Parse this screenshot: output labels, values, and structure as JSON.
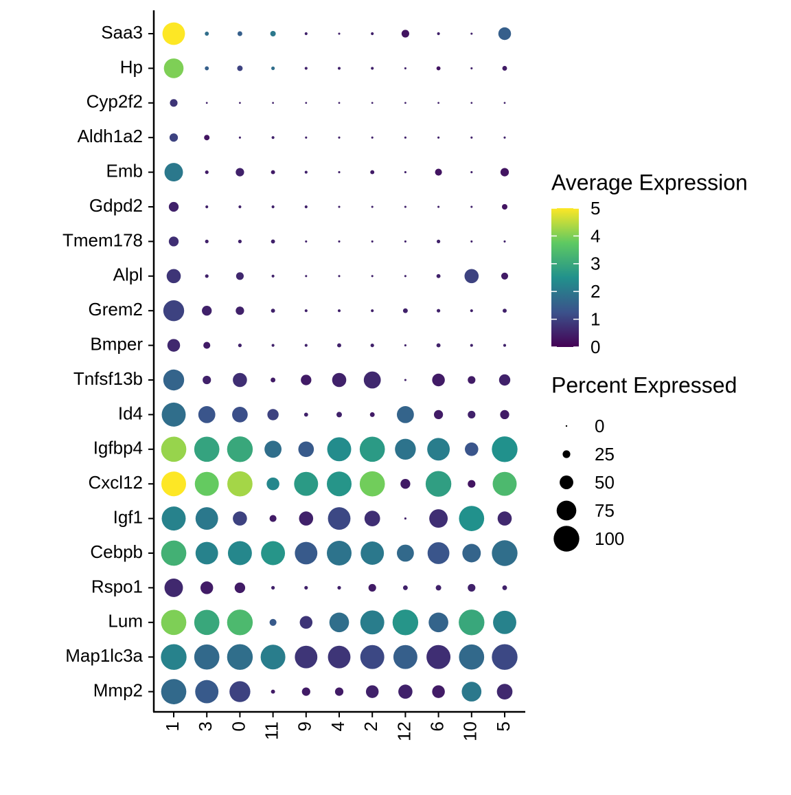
{
  "chart_data": {
    "type": "dot",
    "categories": [
      "1",
      "3",
      "0",
      "11",
      "9",
      "4",
      "2",
      "12",
      "6",
      "10",
      "5"
    ],
    "color_legend_title": "Average Expression",
    "size_legend_title": "Percent Expressed",
    "colorscale": [
      "#440154",
      "#3b528b",
      "#21918c",
      "#5ec962",
      "#fde725"
    ],
    "color_lim": [
      0,
      5
    ],
    "color_ticks": [
      0,
      1,
      2,
      3,
      4,
      5
    ],
    "size_lim": [
      0,
      100
    ],
    "size_ticks": [
      0,
      25,
      50,
      75,
      100
    ],
    "series": [
      {
        "name": "Saa3",
        "expression": [
          5.0,
          1.8,
          1.5,
          2.0,
          0.5,
          0.5,
          0.5,
          0.3,
          0.5,
          0.5,
          1.5
        ],
        "percent": [
          87,
          10,
          13,
          16,
          5,
          2,
          5,
          25,
          5,
          2,
          46
        ]
      },
      {
        "name": "Hp",
        "expression": [
          4.0,
          1.5,
          1.0,
          1.8,
          0.5,
          0.5,
          0.5,
          0.5,
          0.3,
          0.5,
          0.4
        ],
        "percent": [
          75,
          10,
          16,
          8,
          5,
          5,
          5,
          2,
          10,
          2,
          13
        ]
      },
      {
        "name": "Cyp2f2",
        "expression": [
          0.8,
          0.5,
          0.5,
          0.5,
          0.5,
          0.5,
          0.5,
          0.5,
          0.5,
          0.5,
          0.5
        ],
        "percent": [
          25,
          1,
          1,
          1,
          1,
          1,
          1,
          1,
          1,
          1,
          1
        ]
      },
      {
        "name": "Aldh1a2",
        "expression": [
          1.0,
          0.3,
          0.5,
          0.5,
          0.5,
          0.5,
          0.5,
          0.5,
          0.5,
          0.5,
          0.5
        ],
        "percent": [
          28,
          16,
          2,
          5,
          2,
          2,
          2,
          2,
          2,
          2,
          2
        ]
      },
      {
        "name": "Emb",
        "expression": [
          2.0,
          0.4,
          0.5,
          0.4,
          0.5,
          0.5,
          0.4,
          0.5,
          0.3,
          0.5,
          0.3
        ],
        "percent": [
          70,
          8,
          28,
          10,
          5,
          2,
          10,
          2,
          22,
          2,
          28
        ]
      },
      {
        "name": "Gdpd2",
        "expression": [
          0.5,
          0.5,
          0.5,
          0.5,
          0.5,
          0.5,
          0.5,
          0.5,
          0.5,
          0.5,
          0.3
        ],
        "percent": [
          34,
          5,
          5,
          5,
          5,
          2,
          2,
          2,
          2,
          2,
          16
        ]
      },
      {
        "name": "Tmem178",
        "expression": [
          0.7,
          0.5,
          0.5,
          0.5,
          0.5,
          0.5,
          0.5,
          0.5,
          0.5,
          0.5,
          0.5
        ],
        "percent": [
          34,
          8,
          8,
          10,
          2,
          2,
          2,
          2,
          8,
          2,
          2
        ]
      },
      {
        "name": "Alpl",
        "expression": [
          0.8,
          0.5,
          0.6,
          0.5,
          0.5,
          0.5,
          0.5,
          0.5,
          0.5,
          1.0,
          0.4
        ],
        "percent": [
          52,
          8,
          25,
          5,
          2,
          2,
          2,
          2,
          10,
          52,
          22
        ]
      },
      {
        "name": "Grem2",
        "expression": [
          1.0,
          0.5,
          0.5,
          0.5,
          0.5,
          0.5,
          0.5,
          0.5,
          0.5,
          0.5,
          0.5
        ],
        "percent": [
          80,
          34,
          28,
          10,
          5,
          5,
          5,
          13,
          8,
          5,
          10
        ]
      },
      {
        "name": "Bmper",
        "expression": [
          0.6,
          0.4,
          0.5,
          0.5,
          0.5,
          0.5,
          0.5,
          0.5,
          0.5,
          0.5,
          0.5
        ],
        "percent": [
          46,
          22,
          8,
          5,
          5,
          10,
          8,
          2,
          10,
          5,
          5
        ]
      },
      {
        "name": "Tnfsf13b",
        "expression": [
          1.6,
          0.5,
          0.7,
          0.4,
          0.4,
          0.5,
          0.6,
          0.5,
          0.4,
          0.4,
          0.5
        ],
        "percent": [
          80,
          28,
          52,
          13,
          37,
          52,
          64,
          2,
          46,
          25,
          40
        ]
      },
      {
        "name": "Id4",
        "expression": [
          1.8,
          1.3,
          1.2,
          1.0,
          0.5,
          0.5,
          0.4,
          1.6,
          0.4,
          0.5,
          0.4
        ],
        "percent": [
          93,
          64,
          58,
          40,
          10,
          16,
          13,
          64,
          31,
          25,
          31
        ]
      },
      {
        "name": "Igfbp4",
        "expression": [
          4.2,
          2.9,
          3.0,
          1.8,
          1.4,
          2.4,
          2.7,
          1.9,
          2.1,
          1.3,
          2.5
        ],
        "percent": [
          98,
          98,
          100,
          64,
          58,
          93,
          98,
          80,
          87,
          49,
          100
        ]
      },
      {
        "name": "Cxcl12",
        "expression": [
          5.0,
          3.8,
          4.3,
          2.3,
          2.7,
          2.6,
          3.9,
          0.4,
          2.8,
          0.3,
          3.4
        ],
        "percent": [
          96,
          93,
          98,
          46,
          93,
          96,
          98,
          34,
          100,
          25,
          93
        ]
      },
      {
        "name": "Igf1",
        "expression": [
          2.2,
          2.0,
          1.0,
          0.4,
          0.5,
          1.1,
          0.7,
          0.5,
          0.7,
          2.5,
          0.6
        ],
        "percent": [
          93,
          87,
          52,
          22,
          52,
          87,
          58,
          2,
          70,
          98,
          52
        ]
      },
      {
        "name": "Cebpb",
        "expression": [
          3.2,
          2.2,
          2.3,
          2.6,
          1.4,
          1.9,
          2.0,
          1.7,
          1.3,
          1.6,
          1.8
        ],
        "percent": [
          98,
          87,
          93,
          93,
          87,
          96,
          90,
          64,
          84,
          70,
          100
        ]
      },
      {
        "name": "Rspo1",
        "expression": [
          0.6,
          0.4,
          0.4,
          0.5,
          0.5,
          0.5,
          0.4,
          0.5,
          0.5,
          0.5,
          0.5
        ],
        "percent": [
          70,
          46,
          37,
          8,
          8,
          8,
          25,
          13,
          16,
          25,
          13
        ]
      },
      {
        "name": "Lum",
        "expression": [
          4.0,
          3.0,
          3.4,
          1.4,
          0.8,
          1.8,
          2.1,
          2.6,
          1.6,
          3.0,
          2.2
        ],
        "percent": [
          98,
          98,
          100,
          22,
          46,
          75,
          93,
          100,
          75,
          100,
          90
        ]
      },
      {
        "name": "Map1lc3a",
        "expression": [
          2.2,
          1.7,
          1.8,
          2.1,
          0.8,
          0.8,
          1.1,
          1.5,
          0.7,
          1.7,
          1.1
        ],
        "percent": [
          100,
          98,
          100,
          96,
          87,
          87,
          93,
          93,
          93,
          98,
          100
        ]
      },
      {
        "name": "Mmp2",
        "expression": [
          1.7,
          1.4,
          1.0,
          0.4,
          0.4,
          0.4,
          0.5,
          0.5,
          0.4,
          2.0,
          0.6
        ],
        "percent": [
          98,
          90,
          80,
          10,
          28,
          28,
          46,
          52,
          46,
          75,
          58
        ]
      }
    ]
  }
}
